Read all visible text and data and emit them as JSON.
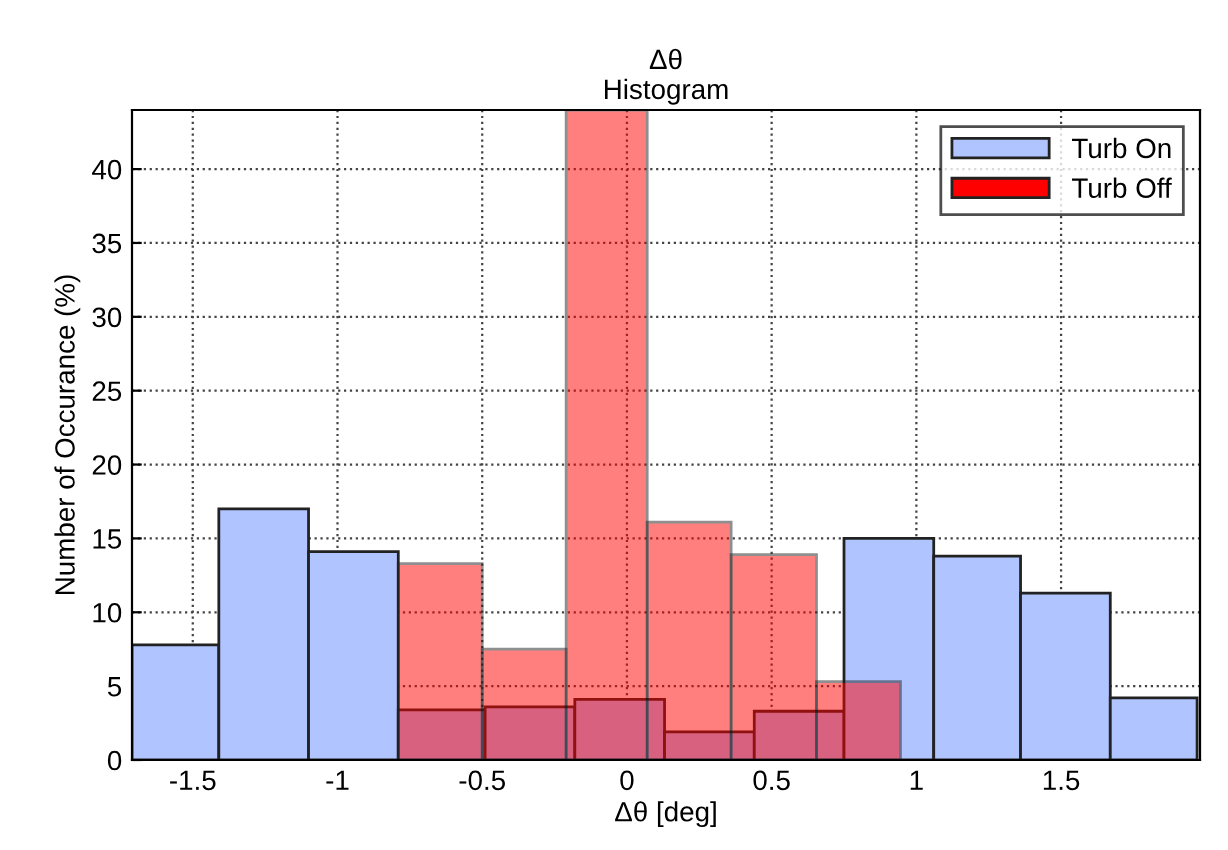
{
  "chart_data": {
    "type": "histogram",
    "title": "Δθ",
    "subtitle": "Histogram",
    "xlabel": "Δθ [deg]",
    "ylabel": "Number of Occurance (%)",
    "bins": [
      -1.71,
      -1.41,
      -1.1,
      -0.79,
      -0.49,
      -0.18,
      0.13,
      0.44,
      0.75,
      1.06,
      1.36,
      1.67,
      1.97
    ],
    "series": [
      {
        "name": "Turb On",
        "color": "#b0c4ff",
        "values": [
          7.8,
          17.0,
          14.1,
          3.4,
          3.6,
          4.1,
          1.9,
          3.3,
          15.0,
          13.8,
          11.3,
          4.2
        ]
      },
      {
        "name": "Turb Off",
        "color": "#ff0000",
        "bins": [
          -0.79,
          -0.5,
          -0.21,
          0.07,
          0.36,
          0.655,
          0.945
        ],
        "values": [
          13.3,
          7.5,
          44,
          16.1,
          13.9,
          5.3
        ]
      }
    ],
    "xlim": [
      -1.71,
      1.98
    ],
    "ylim": [
      0,
      44
    ],
    "xticks": [
      -1.5,
      -1,
      -0.5,
      0,
      0.5,
      1,
      1.5
    ],
    "yticks": [
      0,
      5,
      10,
      15,
      20,
      25,
      30,
      35,
      40
    ],
    "grid": true,
    "legend": "top right"
  }
}
